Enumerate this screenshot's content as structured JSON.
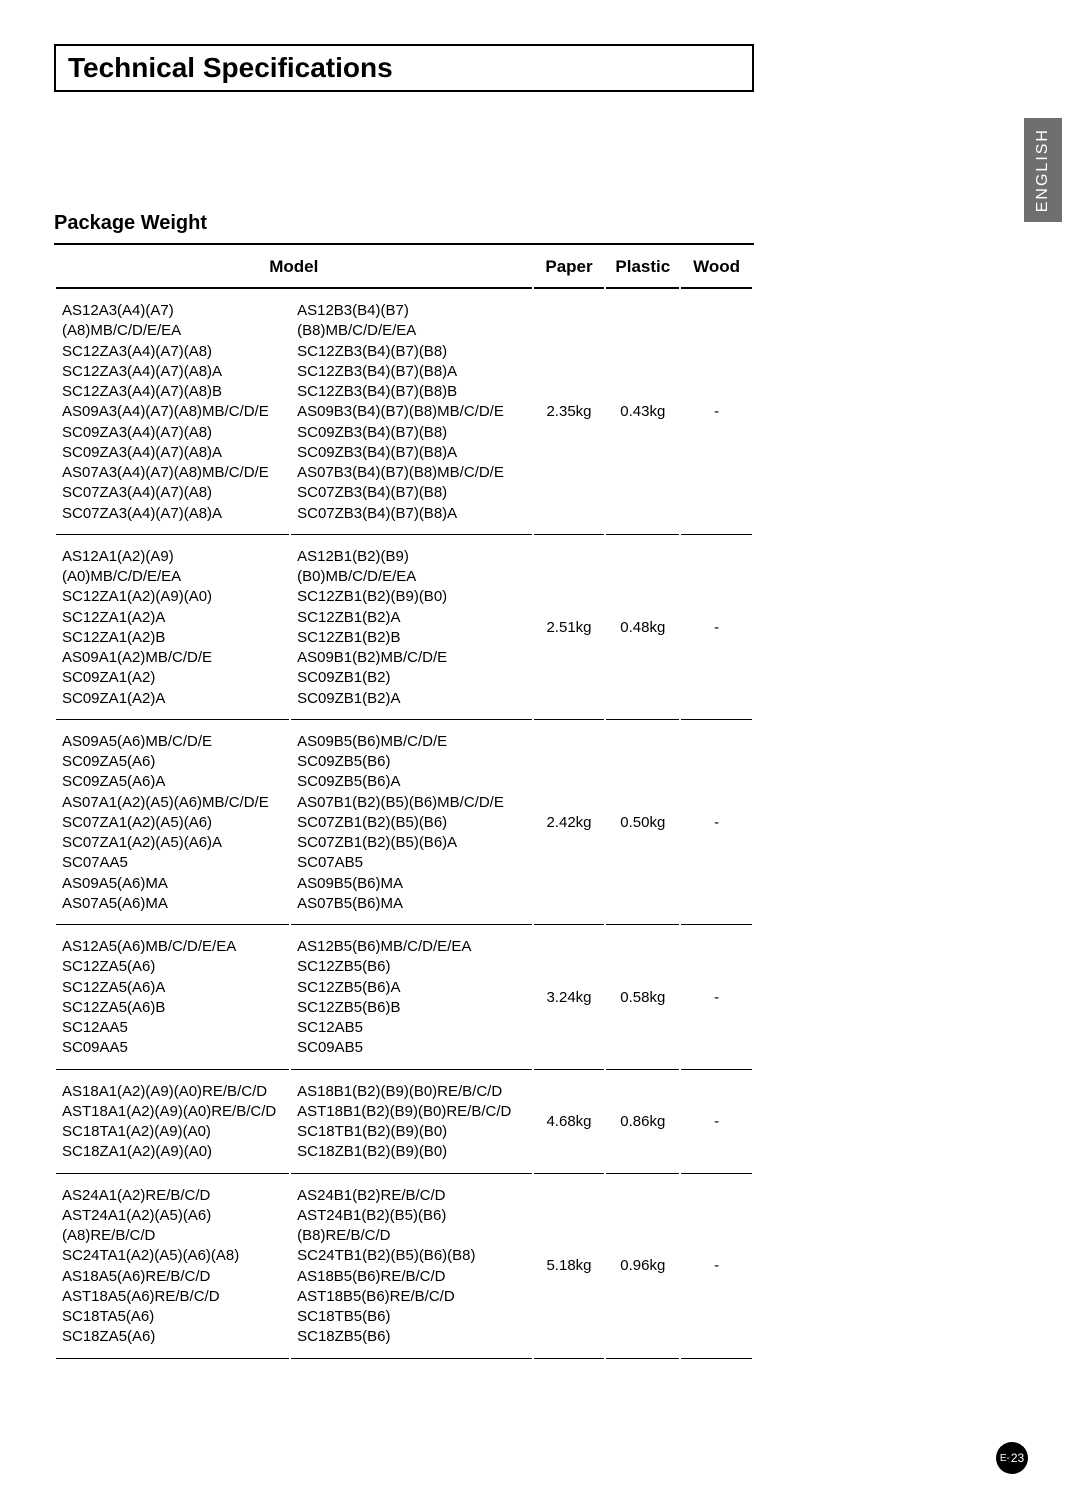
{
  "title": "Technical Specifications",
  "language_tab": "ENGLISH",
  "section_title": "Package Weight",
  "headers": {
    "model": "Model",
    "paper": "Paper",
    "plastic": "Plastic",
    "wood": "Wood"
  },
  "rows": [
    {
      "models_a": "AS12A3(A4)(A7)(A8)MB/C/D/E/EA\nSC12ZA3(A4)(A7)(A8)\nSC12ZA3(A4)(A7)(A8)A\nSC12ZA3(A4)(A7)(A8)B\nAS09A3(A4)(A7)(A8)MB/C/D/E\nSC09ZA3(A4)(A7)(A8)\nSC09ZA3(A4)(A7)(A8)A\nAS07A3(A4)(A7)(A8)MB/C/D/E\nSC07ZA3(A4)(A7)(A8)\nSC07ZA3(A4)(A7)(A8)A",
      "models_b": "AS12B3(B4)(B7)(B8)MB/C/D/E/EA\nSC12ZB3(B4)(B7)(B8)\nSC12ZB3(B4)(B7)(B8)A\nSC12ZB3(B4)(B7)(B8)B\nAS09B3(B4)(B7)(B8)MB/C/D/E\nSC09ZB3(B4)(B7)(B8)\nSC09ZB3(B4)(B7)(B8)A\nAS07B3(B4)(B7)(B8)MB/C/D/E\nSC07ZB3(B4)(B7)(B8)\nSC07ZB3(B4)(B7)(B8)A",
      "paper": "2.35kg",
      "plastic": "0.43kg",
      "wood": "-"
    },
    {
      "models_a": "AS12A1(A2)(A9)(A0)MB/C/D/E/EA\nSC12ZA1(A2)(A9)(A0)\nSC12ZA1(A2)A\nSC12ZA1(A2)B\nAS09A1(A2)MB/C/D/E\nSC09ZA1(A2)\nSC09ZA1(A2)A",
      "models_b": "AS12B1(B2)(B9)(B0)MB/C/D/E/EA\nSC12ZB1(B2)(B9)(B0)\nSC12ZB1(B2)A\nSC12ZB1(B2)B\nAS09B1(B2)MB/C/D/E\nSC09ZB1(B2)\nSC09ZB1(B2)A",
      "paper": "2.51kg",
      "plastic": "0.48kg",
      "wood": "-"
    },
    {
      "models_a": "AS09A5(A6)MB/C/D/E\nSC09ZA5(A6)\nSC09ZA5(A6)A\nAS07A1(A2)(A5)(A6)MB/C/D/E\nSC07ZA1(A2)(A5)(A6)\nSC07ZA1(A2)(A5)(A6)A\nSC07AA5\nAS09A5(A6)MA\nAS07A5(A6)MA",
      "models_b": "AS09B5(B6)MB/C/D/E\nSC09ZB5(B6)\nSC09ZB5(B6)A\nAS07B1(B2)(B5)(B6)MB/C/D/E\nSC07ZB1(B2)(B5)(B6)\nSC07ZB1(B2)(B5)(B6)A\nSC07AB5\nAS09B5(B6)MA\nAS07B5(B6)MA",
      "paper": "2.42kg",
      "plastic": "0.50kg",
      "wood": "-"
    },
    {
      "models_a": "AS12A5(A6)MB/C/D/E/EA\nSC12ZA5(A6)\nSC12ZA5(A6)A\nSC12ZA5(A6)B\nSC12AA5\nSC09AA5",
      "models_b": "AS12B5(B6)MB/C/D/E/EA\nSC12ZB5(B6)\nSC12ZB5(B6)A\nSC12ZB5(B6)B\nSC12AB5\nSC09AB5",
      "paper": "3.24kg",
      "plastic": "0.58kg",
      "wood": "-"
    },
    {
      "models_a": "AS18A1(A2)(A9)(A0)RE/B/C/D\nAST18A1(A2)(A9)(A0)RE/B/C/D\nSC18TA1(A2)(A9)(A0)\nSC18ZA1(A2)(A9)(A0)",
      "models_b": "AS18B1(B2)(B9)(B0)RE/B/C/D\nAST18B1(B2)(B9)(B0)RE/B/C/D\nSC18TB1(B2)(B9)(B0)\nSC18ZB1(B2)(B9)(B0)",
      "paper": "4.68kg",
      "plastic": "0.86kg",
      "wood": "-"
    },
    {
      "models_a": "AS24A1(A2)RE/B/C/D\nAST24A1(A2)(A5)(A6)(A8)RE/B/C/D\nSC24TA1(A2)(A5)(A6)(A8)\nAS18A5(A6)RE/B/C/D\nAST18A5(A6)RE/B/C/D\nSC18TA5(A6)\nSC18ZA5(A6)",
      "models_b": "AS24B1(B2)RE/B/C/D\nAST24B1(B2)(B5)(B6)(B8)RE/B/C/D\nSC24TB1(B2)(B5)(B6)(B8)\nAS18B5(B6)RE/B/C/D\nAST18B5(B6)RE/B/C/D\nSC18TB5(B6)\nSC18ZB5(B6)",
      "paper": "5.18kg",
      "plastic": "0.96kg",
      "wood": "-"
    }
  ],
  "page_number": {
    "prefix": "E-",
    "num": "23"
  },
  "colors": {
    "tab_bg": "#6f6f6f",
    "tab_text": "#ffffff",
    "border": "#000000",
    "text": "#000000",
    "page_bg": "#ffffff"
  }
}
